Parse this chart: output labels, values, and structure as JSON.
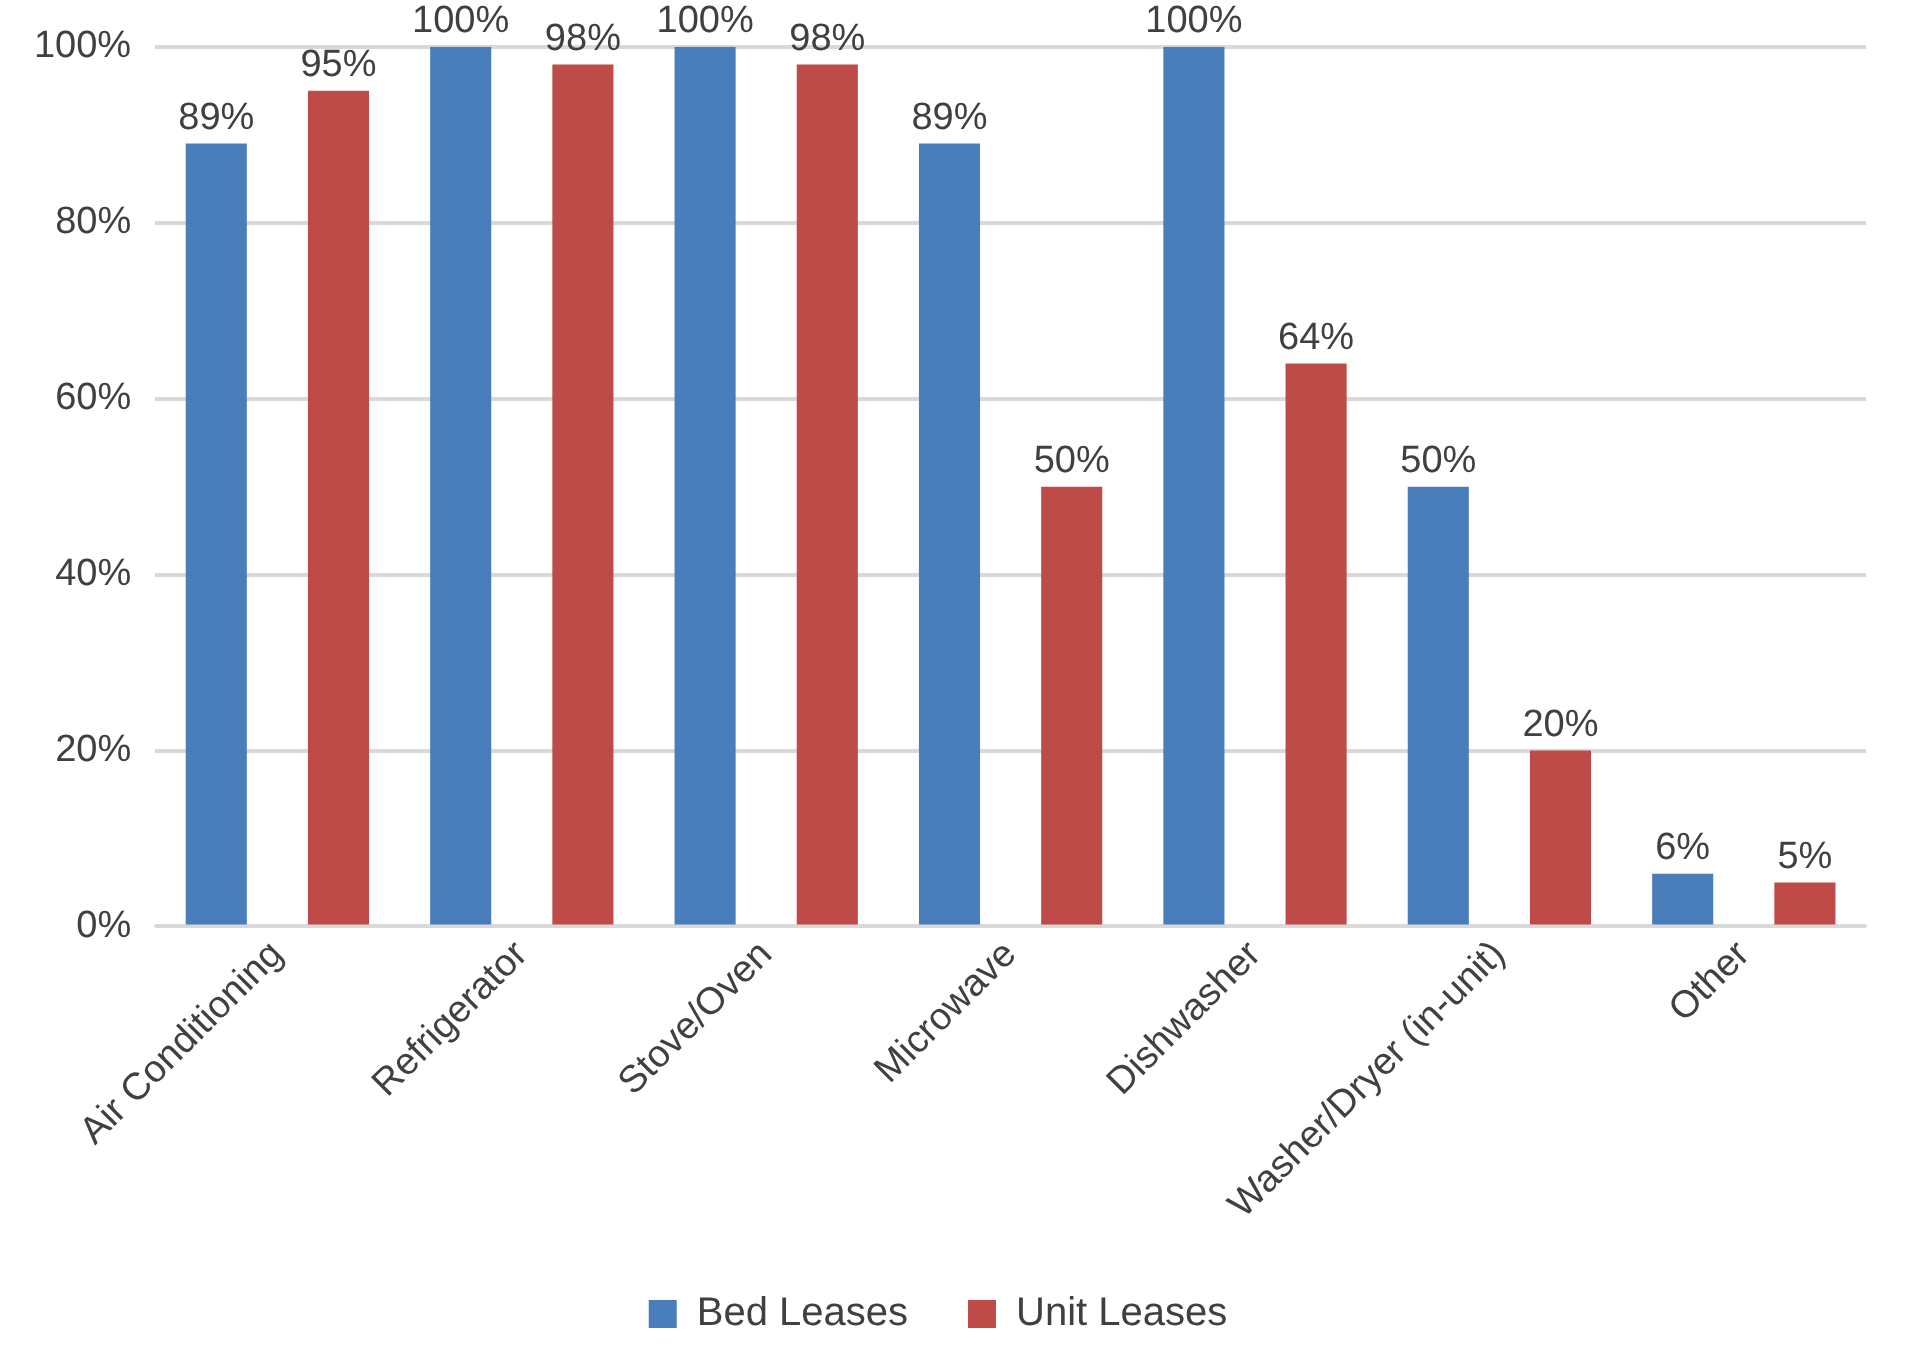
{
  "chart_data": {
    "type": "bar",
    "categories": [
      "Air Conditioning",
      "Refrigerator",
      "Stove/Oven",
      "Microwave",
      "Dishwasher",
      "Washer/Dryer (in-unit)",
      "Other"
    ],
    "series": [
      {
        "name": "Bed Leases",
        "color": "#4a7ebb",
        "values": [
          89,
          100,
          100,
          89,
          100,
          50,
          6
        ],
        "value_labels": [
          "89%",
          "100%",
          "100%",
          "89%",
          "100%",
          "50%",
          "6%"
        ]
      },
      {
        "name": "Unit Leases",
        "color": "#be4b48",
        "values": [
          95,
          98,
          98,
          50,
          64,
          20,
          5
        ],
        "value_labels": [
          "95%",
          "98%",
          "98%",
          "50%",
          "64%",
          "20%",
          "5%"
        ]
      }
    ],
    "ylim": [
      0,
      100
    ],
    "yticks": [
      {
        "value": 0,
        "label": "0%"
      },
      {
        "value": 20,
        "label": "20%"
      },
      {
        "value": 40,
        "label": "40%"
      },
      {
        "value": 60,
        "label": "60%"
      },
      {
        "value": 80,
        "label": "80%"
      },
      {
        "value": 100,
        "label": "100%"
      }
    ],
    "grid": "y",
    "legend": "bottom"
  }
}
